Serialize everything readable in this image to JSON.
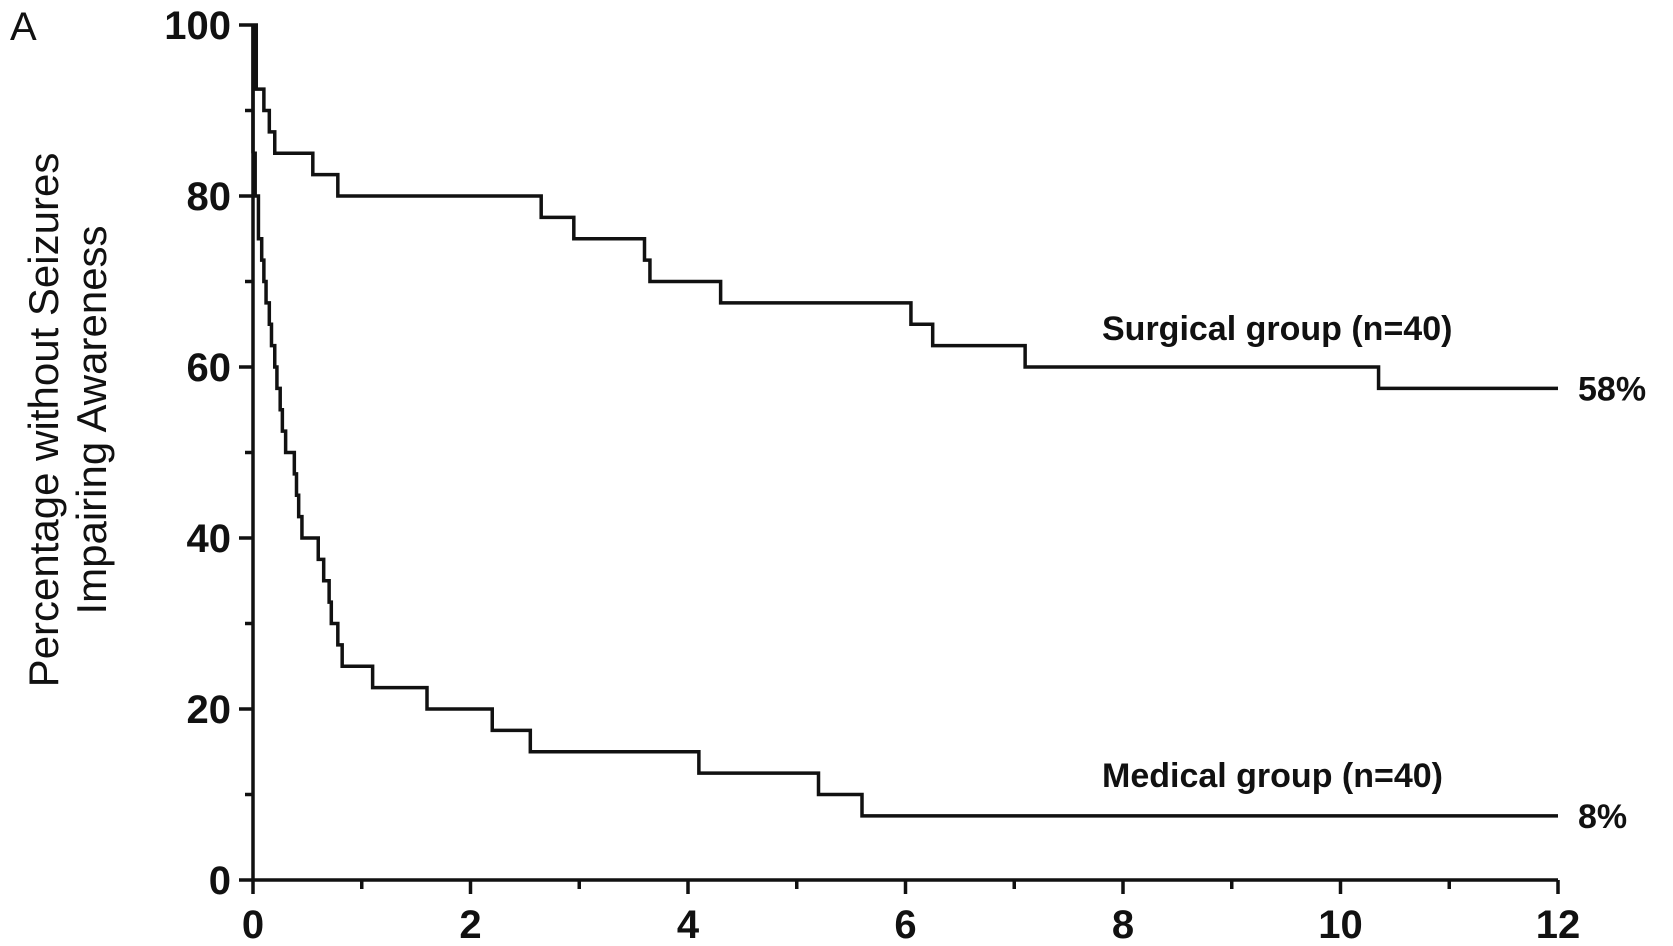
{
  "chart_data": {
    "type": "line",
    "panel_label": "A",
    "ylabel_lines": [
      "Percentage without Seizures",
      "Impairing Awareness"
    ],
    "xlabel": "",
    "xlim": [
      0,
      12
    ],
    "ylim": [
      0,
      100
    ],
    "x_ticks": [
      0,
      2,
      4,
      6,
      8,
      10,
      12
    ],
    "y_ticks": [
      0,
      20,
      40,
      60,
      80,
      100
    ],
    "x_tick_labels": [
      "0",
      "2",
      "4",
      "6",
      "8",
      "10",
      "12"
    ],
    "y_tick_labels": [
      "0",
      "20",
      "40",
      "60",
      "80",
      "100"
    ],
    "step": true,
    "series": [
      {
        "name": "Surgical group (n=40)",
        "end_label": "58%",
        "points": [
          [
            0,
            100
          ],
          [
            0.03,
            92.5
          ],
          [
            0.1,
            90
          ],
          [
            0.15,
            87.5
          ],
          [
            0.2,
            85
          ],
          [
            0.5,
            85
          ],
          [
            0.55,
            82.5
          ],
          [
            0.75,
            82.5
          ],
          [
            0.78,
            80
          ],
          [
            2.6,
            80
          ],
          [
            2.65,
            77.5
          ],
          [
            2.9,
            77.5
          ],
          [
            2.95,
            75
          ],
          [
            3.55,
            75
          ],
          [
            3.6,
            72.5
          ],
          [
            3.65,
            70
          ],
          [
            4.25,
            70
          ],
          [
            4.3,
            67.5
          ],
          [
            6.0,
            67.5
          ],
          [
            6.05,
            65
          ],
          [
            6.2,
            65
          ],
          [
            6.25,
            62.5
          ],
          [
            7.05,
            62.5
          ],
          [
            7.1,
            60
          ],
          [
            10.3,
            60
          ],
          [
            10.35,
            57.5
          ],
          [
            12,
            57.5
          ]
        ]
      },
      {
        "name": "Medical group (n=40)",
        "end_label": "8%",
        "points": [
          [
            0,
            85
          ],
          [
            0.02,
            80
          ],
          [
            0.05,
            75
          ],
          [
            0.08,
            72.5
          ],
          [
            0.1,
            70
          ],
          [
            0.12,
            67.5
          ],
          [
            0.15,
            65
          ],
          [
            0.17,
            62.5
          ],
          [
            0.2,
            60
          ],
          [
            0.22,
            57.5
          ],
          [
            0.25,
            55
          ],
          [
            0.27,
            52.5
          ],
          [
            0.3,
            50
          ],
          [
            0.35,
            50
          ],
          [
            0.38,
            47.5
          ],
          [
            0.4,
            45
          ],
          [
            0.42,
            42.5
          ],
          [
            0.45,
            40
          ],
          [
            0.55,
            40
          ],
          [
            0.6,
            37.5
          ],
          [
            0.65,
            35
          ],
          [
            0.7,
            32.5
          ],
          [
            0.72,
            30
          ],
          [
            0.78,
            27.5
          ],
          [
            0.82,
            25
          ],
          [
            1.05,
            25
          ],
          [
            1.1,
            22.5
          ],
          [
            1.55,
            22.5
          ],
          [
            1.6,
            20
          ],
          [
            2.15,
            20
          ],
          [
            2.2,
            17.5
          ],
          [
            2.5,
            17.5
          ],
          [
            2.55,
            15
          ],
          [
            4.05,
            15
          ],
          [
            4.1,
            12.5
          ],
          [
            5.15,
            12.5
          ],
          [
            5.2,
            10
          ],
          [
            5.55,
            10
          ],
          [
            5.6,
            7.5
          ],
          [
            12,
            7.5
          ]
        ]
      }
    ]
  }
}
